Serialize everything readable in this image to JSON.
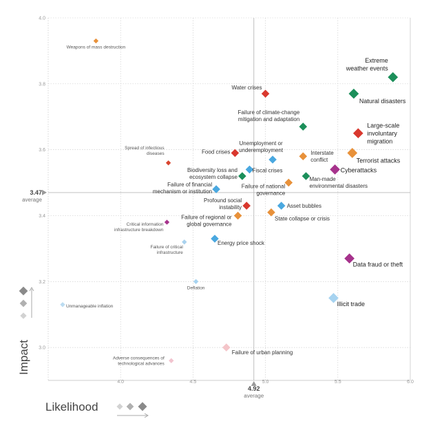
{
  "chart_data": {
    "type": "scatter",
    "xlabel": "Likelihood",
    "ylabel": "Impact",
    "xlim": [
      3.5,
      6.0
    ],
    "ylim": [
      2.9,
      4.0
    ],
    "x_ticks": [
      "4.0",
      "4.5",
      "5.0",
      "5.5",
      "6.0"
    ],
    "y_ticks": [
      "3.0",
      "3.2",
      "3.4",
      "3.6",
      "3.8",
      "4.0"
    ],
    "average": {
      "x_value": 4.92,
      "x_label": "4.92",
      "x_text": "average",
      "y_value": 3.47,
      "y_label": "3.47",
      "y_text": "average"
    },
    "colors": {
      "economic": "#4aa8e0",
      "environmental": "#1b8f5a",
      "geopolitical": "#e8913a",
      "societal": "#d9382e",
      "technological": "#a6328c"
    },
    "points": [
      {
        "label": "Weapons of mass destruction",
        "x": 3.83,
        "y": 3.93,
        "category": "geopolitical",
        "size": "small"
      },
      {
        "label": "Extreme weather events",
        "x": 5.88,
        "y": 3.82,
        "category": "environmental",
        "size": "large"
      },
      {
        "label": "Natural disasters",
        "x": 5.61,
        "y": 3.77,
        "category": "environmental",
        "size": "large"
      },
      {
        "label": "Water crises",
        "x": 5.0,
        "y": 3.77,
        "category": "societal",
        "size": "medium"
      },
      {
        "label": "Failure of climate-change mitigation and adaptation",
        "x": 5.26,
        "y": 3.67,
        "category": "environmental",
        "size": "medium"
      },
      {
        "label": "Large-scale involuntary migration",
        "x": 5.64,
        "y": 3.65,
        "category": "societal",
        "size": "large"
      },
      {
        "label": "Food crises",
        "x": 4.79,
        "y": 3.59,
        "category": "societal",
        "size": "medium"
      },
      {
        "label": "Unemployment or underemployment",
        "x": 5.05,
        "y": 3.57,
        "category": "economic",
        "size": "medium"
      },
      {
        "label": "Interstate conflict",
        "x": 5.26,
        "y": 3.58,
        "category": "geopolitical",
        "size": "medium"
      },
      {
        "label": "Terrorist attacks",
        "x": 5.6,
        "y": 3.59,
        "category": "geopolitical",
        "size": "large"
      },
      {
        "label": "Spread of infectious diseases",
        "x": 4.33,
        "y": 3.56,
        "category": "societal",
        "size": "small"
      },
      {
        "label": "Biodiversity loss and ecosystem collapse",
        "x": 4.84,
        "y": 3.52,
        "category": "environmental",
        "size": "medium"
      },
      {
        "label": "Fiscal crises",
        "x": 4.89,
        "y": 3.54,
        "category": "economic",
        "size": "medium"
      },
      {
        "label": "Man-made environmental disasters",
        "x": 5.28,
        "y": 3.52,
        "category": "environmental",
        "size": "medium"
      },
      {
        "label": "Cyberattacks",
        "x": 5.48,
        "y": 3.54,
        "category": "technological",
        "size": "large"
      },
      {
        "label": "Failure of national governance",
        "x": 5.16,
        "y": 3.5,
        "category": "geopolitical",
        "size": "medium"
      },
      {
        "label": "Failure of financial mechanism or institution",
        "x": 4.66,
        "y": 3.48,
        "category": "economic",
        "size": "medium"
      },
      {
        "label": "Profound social instability",
        "x": 4.87,
        "y": 3.43,
        "category": "societal",
        "size": "medium"
      },
      {
        "label": "Asset bubbles",
        "x": 5.11,
        "y": 3.43,
        "category": "economic",
        "size": "medium"
      },
      {
        "label": "Failure of regional or global governance",
        "x": 4.81,
        "y": 3.4,
        "category": "geopolitical",
        "size": "medium"
      },
      {
        "label": "State collapse or crisis",
        "x": 5.04,
        "y": 3.41,
        "category": "geopolitical",
        "size": "medium"
      },
      {
        "label": "Critical information infrastructure breakdown",
        "x": 4.32,
        "y": 3.38,
        "category": "technological",
        "size": "small"
      },
      {
        "label": "Energy price shock",
        "x": 4.65,
        "y": 3.33,
        "category": "economic",
        "size": "medium"
      },
      {
        "label": "Failure of critical infrastructure",
        "x": 4.44,
        "y": 3.32,
        "category": "economic",
        "size": "small"
      },
      {
        "label": "Data fraud or theft",
        "x": 5.58,
        "y": 3.27,
        "category": "technological",
        "size": "large"
      },
      {
        "label": "Deflation",
        "x": 4.52,
        "y": 3.2,
        "category": "economic",
        "size": "small"
      },
      {
        "label": "Illicit trade",
        "x": 5.47,
        "y": 3.15,
        "category": "economic",
        "size": "large"
      },
      {
        "label": "Unmanageable inflation",
        "x": 3.6,
        "y": 3.13,
        "category": "economic",
        "size": "small"
      },
      {
        "label": "Failure of urban planning",
        "x": 4.73,
        "y": 3.0,
        "category": "societal",
        "size": "medium"
      },
      {
        "label": "Adverse consequences of technological advances",
        "x": 4.35,
        "y": 2.96,
        "category": "technological",
        "size": "small"
      }
    ]
  }
}
